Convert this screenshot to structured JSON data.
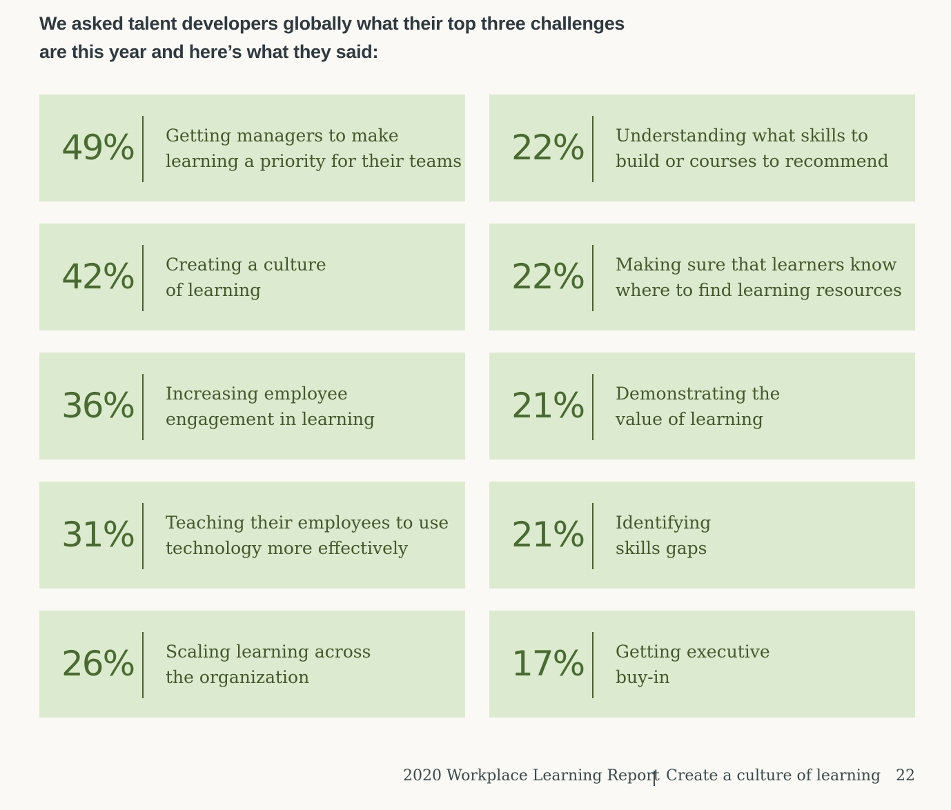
{
  "header": {
    "title_lines": [
      "We asked talent developers globally what their top three challenges",
      "are this year and here’s what they said:"
    ]
  },
  "cards": [
    {
      "stat": "49%",
      "lines": [
        "Getting managers to make",
        "learning a priority for their teams"
      ]
    },
    {
      "stat": "42%",
      "lines": [
        "Creating a culture",
        "of learning"
      ]
    },
    {
      "stat": "36%",
      "lines": [
        "Increasing employee",
        "engagement in learning"
      ]
    },
    {
      "stat": "31%",
      "lines": [
        "Teaching their employees to use",
        "technology more effectively"
      ]
    },
    {
      "stat": "26%",
      "lines": [
        "Scaling learning across",
        "the organization"
      ]
    },
    {
      "stat": "22%",
      "lines": [
        "Understanding what skills to",
        "build or courses to recommend"
      ]
    },
    {
      "stat": "22%",
      "lines": [
        "Making sure that learners know",
        "where to find learning resources"
      ]
    },
    {
      "stat": "21%",
      "lines": [
        "Demonstrating the",
        "value of learning"
      ]
    },
    {
      "stat": "21%",
      "lines": [
        "Identifying",
        "skills gaps"
      ]
    },
    {
      "stat": "17%",
      "lines": [
        "Getting executive",
        "buy-in"
      ]
    }
  ],
  "footer": {
    "report": "2020 Workplace Learning Report",
    "section": "Create a culture of learning",
    "page": "22"
  }
}
